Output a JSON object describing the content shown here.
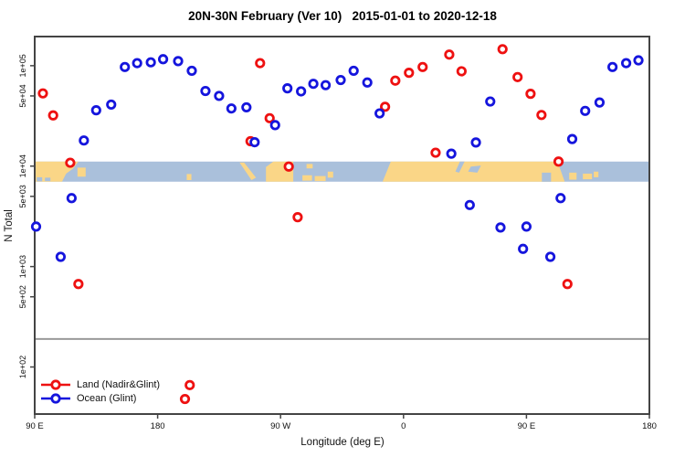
{
  "title": "20N-30N February (Ver 10)   2015-01-01 to 2020-12-18",
  "chart_data": {
    "type": "scatter",
    "x_axis": {
      "label": "Longitude (deg E)",
      "domain": [
        90,
        540
      ],
      "ticks": [
        {
          "lon": 90,
          "label": "90 E"
        },
        {
          "lon": 180,
          "label": "180"
        },
        {
          "lon": 270,
          "label": "90 W"
        },
        {
          "lon": 360,
          "label": "0"
        },
        {
          "lon": 450,
          "label": "90 E"
        },
        {
          "lon": 540,
          "label": "180"
        }
      ]
    },
    "y_axis": {
      "label": "N Total",
      "scale": "log",
      "range": [
        34,
        195000
      ],
      "ticks": [
        {
          "value": 100000,
          "label": "1e+05"
        },
        {
          "value": 50000,
          "label": "5e+04"
        },
        {
          "value": 10000,
          "label": "1e+04"
        },
        {
          "value": 5000,
          "label": "5e+03"
        },
        {
          "value": 1000,
          "label": "1e+03"
        },
        {
          "value": 500,
          "label": "5e+02"
        },
        {
          "value": 100,
          "label": "1e+02"
        }
      ]
    },
    "reference_line": {
      "value": 190,
      "color": "#999999"
    },
    "map_band": {
      "top_value": 11100,
      "bottom_value": 7000,
      "ocean_color": "#AAC0DB",
      "land_color": "#FAD687",
      "land_shapes": [
        {
          "type": "poly",
          "pts": [
            [
              90,
              0
            ],
            [
              122,
              0
            ],
            [
              118,
              0.35
            ],
            [
              113,
              0.6
            ],
            [
              110,
              1
            ],
            [
              90,
              1
            ]
          ]
        },
        {
          "type": "rect",
          "x": 121.3,
          "y": 0.3,
          "w": 6,
          "h": 0.45
        },
        {
          "type": "rect",
          "x": 201.3,
          "y": 0.62,
          "w": 3.4,
          "h": 0.3
        },
        {
          "type": "poly",
          "pts": [
            [
              240,
              0.05
            ],
            [
              243.3,
              0.05
            ],
            [
              252,
              0.8
            ],
            [
              248.7,
              0.92
            ]
          ]
        },
        {
          "type": "poly",
          "pts": [
            [
              259.3,
              0.27
            ],
            [
              264.7,
              0
            ],
            [
              279.3,
              0
            ],
            [
              279.3,
              1
            ],
            [
              259.3,
              1
            ]
          ]
        },
        {
          "type": "rect",
          "x": 286,
          "y": 0.68,
          "w": 7,
          "h": 0.27
        },
        {
          "type": "rect",
          "x": 295,
          "y": 0.72,
          "w": 8,
          "h": 0.25
        },
        {
          "type": "rect",
          "x": 304.5,
          "y": 0.5,
          "w": 4,
          "h": 0.3
        },
        {
          "type": "rect",
          "x": 289,
          "y": 0.12,
          "w": 4.5,
          "h": 0.22
        },
        {
          "type": "poly",
          "pts": [
            [
              344.7,
              1
            ],
            [
              350.7,
              0
            ],
            [
              472.7,
              0
            ],
            [
              478,
              1
            ]
          ]
        },
        {
          "type": "rect",
          "x": 481.3,
          "y": 0.55,
          "w": 5.4,
          "h": 0.35
        },
        {
          "type": "rect",
          "x": 491.3,
          "y": 0.6,
          "w": 6.7,
          "h": 0.28
        },
        {
          "type": "rect",
          "x": 499.3,
          "y": 0.5,
          "w": 3.4,
          "h": 0.28
        }
      ],
      "water_patches": [
        {
          "type": "rect",
          "x": 91.5,
          "y": 0.78,
          "w": 4,
          "h": 0.2
        },
        {
          "type": "rect",
          "x": 97.5,
          "y": 0.8,
          "w": 4,
          "h": 0.17
        },
        {
          "type": "poly",
          "pts": [
            [
              401.3,
              0
            ],
            [
              404.7,
              0
            ],
            [
              400.7,
              0.55
            ],
            [
              398,
              0.5
            ]
          ]
        },
        {
          "type": "poly",
          "pts": [
            [
              409.3,
              0.25
            ],
            [
              416.7,
              0.2
            ],
            [
              414,
              0.55
            ],
            [
              407.3,
              0.5
            ]
          ]
        },
        {
          "type": "rect",
          "x": 461.3,
          "y": 0.55,
          "w": 6.7,
          "h": 0.45
        }
      ]
    },
    "series": [
      {
        "name": "Land (Nadir&Glint)",
        "color": "#EE1111",
        "points": [
          [
            96,
            53000
          ],
          [
            103.5,
            32000
          ],
          [
            116,
            10800
          ],
          [
            122,
            670
          ],
          [
            248,
            17700
          ],
          [
            255,
            106000
          ],
          [
            262,
            30000
          ],
          [
            276,
            9900
          ],
          [
            282.5,
            3100
          ],
          [
            346.5,
            39000
          ],
          [
            354,
            71000
          ],
          [
            364,
            85000
          ],
          [
            374,
            97000
          ],
          [
            383.5,
            13600
          ],
          [
            393.5,
            129000
          ],
          [
            402.5,
            88000
          ],
          [
            432.5,
            146000
          ],
          [
            443.5,
            77000
          ],
          [
            453,
            52500
          ],
          [
            461,
            32300
          ],
          [
            473.5,
            11100
          ],
          [
            480,
            670
          ],
          [
            203.5,
            66
          ],
          [
            200,
            48
          ]
        ]
      },
      {
        "name": "Ocean (Glint)",
        "color": "#1515DD",
        "points": [
          [
            91,
            2500
          ],
          [
            109,
            1250
          ],
          [
            117,
            4800
          ],
          [
            126,
            18000
          ],
          [
            135,
            36000
          ],
          [
            146,
            41000
          ],
          [
            156,
            97000
          ],
          [
            165,
            106000
          ],
          [
            175,
            108000
          ],
          [
            184,
            116000
          ],
          [
            195,
            111000
          ],
          [
            205,
            89000
          ],
          [
            215,
            56000
          ],
          [
            225,
            50000
          ],
          [
            234,
            37500
          ],
          [
            245,
            38500
          ],
          [
            251,
            17300
          ],
          [
            266,
            25600
          ],
          [
            275,
            59500
          ],
          [
            285,
            55500
          ],
          [
            294,
            66000
          ],
          [
            303,
            64000
          ],
          [
            314,
            72000
          ],
          [
            323.5,
            89000
          ],
          [
            333.5,
            68000
          ],
          [
            342.5,
            33500
          ],
          [
            395,
            13300
          ],
          [
            408.5,
            4100
          ],
          [
            413,
            17200
          ],
          [
            423.5,
            44000
          ],
          [
            431,
            2450
          ],
          [
            447.5,
            1500
          ],
          [
            450,
            2500
          ],
          [
            467.5,
            1250
          ],
          [
            475,
            4800
          ],
          [
            483.5,
            18600
          ],
          [
            493,
            35500
          ],
          [
            503.5,
            43000
          ],
          [
            513,
            97000
          ],
          [
            523,
            106000
          ],
          [
            532,
            113000
          ]
        ]
      }
    ]
  },
  "legend": {
    "items": [
      {
        "label": "Land (Nadir&Glint)",
        "color": "#EE1111"
      },
      {
        "label": "Ocean (Glint)",
        "color": "#1515DD"
      }
    ]
  }
}
